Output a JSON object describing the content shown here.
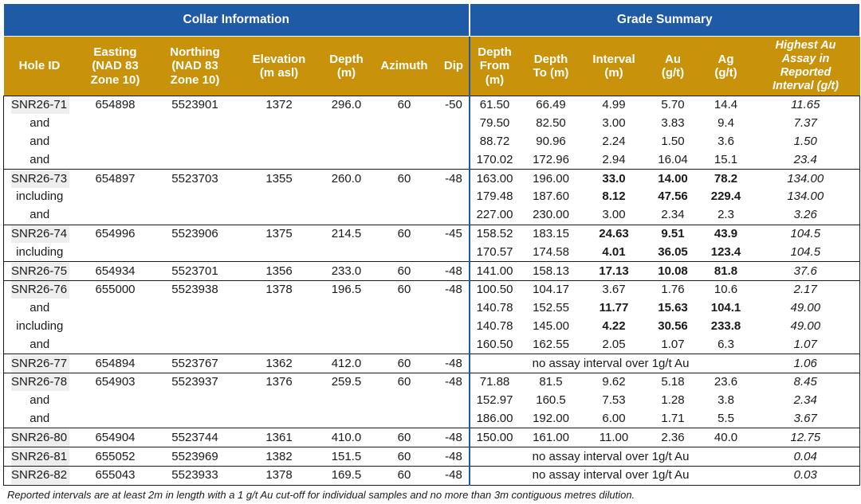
{
  "group_headers": {
    "collar": "Collar Information",
    "grade": "Grade Summary"
  },
  "columns": {
    "hole_id": [
      "Hole ID"
    ],
    "easting": [
      "Easting",
      "(NAD 83",
      "Zone 10)"
    ],
    "northing": [
      "Northing",
      "(NAD 83",
      "Zone 10)"
    ],
    "elevation": [
      "Elevation",
      "(m asl)"
    ],
    "depth": [
      "Depth",
      "(m)"
    ],
    "azimuth": [
      "Azimuth"
    ],
    "dip": [
      "Dip"
    ],
    "depth_from": [
      "Depth",
      "From",
      "(m)"
    ],
    "depth_to": [
      "Depth",
      "To (m)"
    ],
    "interval": [
      "Interval",
      "(m)"
    ],
    "au": [
      "Au",
      "(g/t)"
    ],
    "ag": [
      "Ag",
      "(g/t)"
    ],
    "highest_au": [
      "Highest Au",
      "Assay in",
      "Reported",
      "Interval  (g/t)"
    ]
  },
  "holes": [
    {
      "hole_id": "SNR26-71",
      "easting": "654898",
      "northing": "5523901",
      "elevation": "1372",
      "depth": "296.0",
      "azimuth": "60",
      "dip": "-50",
      "intervals": [
        {
          "label": "",
          "from": "61.50",
          "to": "66.49",
          "interval": "4.99",
          "au": "5.70",
          "ag": "14.4",
          "highest": "11.65",
          "bold": false
        },
        {
          "label": "and",
          "from": "79.50",
          "to": "82.50",
          "interval": "3.00",
          "au": "3.83",
          "ag": "9.4",
          "highest": "7.37",
          "bold": false
        },
        {
          "label": "and",
          "from": "88.72",
          "to": "90.96",
          "interval": "2.24",
          "au": "1.50",
          "ag": "3.6",
          "highest": "1.50",
          "bold": false
        },
        {
          "label": "and",
          "from": "170.02",
          "to": "172.96",
          "interval": "2.94",
          "au": "16.04",
          "ag": "15.1",
          "highest": "23.4",
          "bold": false
        }
      ]
    },
    {
      "hole_id": "SNR26-73",
      "easting": "654897",
      "northing": "5523703",
      "elevation": "1355",
      "depth": "260.0",
      "azimuth": "60",
      "dip": "-48",
      "intervals": [
        {
          "label": "",
          "from": "163.00",
          "to": "196.00",
          "interval": "33.0",
          "au": "14.00",
          "ag": "78.2",
          "highest": "134.00",
          "bold": true
        },
        {
          "label": "including",
          "from": "179.48",
          "to": "187.60",
          "interval": "8.12",
          "au": "47.56",
          "ag": "229.4",
          "highest": "134.00",
          "bold": true
        },
        {
          "label": "and",
          "from": "227.00",
          "to": "230.00",
          "interval": "3.00",
          "au": "2.34",
          "ag": "2.3",
          "highest": "3.26",
          "bold": false
        }
      ]
    },
    {
      "hole_id": "SNR26-74",
      "easting": "654996",
      "northing": "5523906",
      "elevation": "1375",
      "depth": "214.5",
      "azimuth": "60",
      "dip": "-45",
      "intervals": [
        {
          "label": "",
          "from": "158.52",
          "to": "183.15",
          "interval": "24.63",
          "au": "9.51",
          "ag": "43.9",
          "highest": "104.5",
          "bold": true
        },
        {
          "label": "including",
          "from": "170.57",
          "to": "174.58",
          "interval": "4.01",
          "au": "36.05",
          "ag": "123.4",
          "highest": "104.5",
          "bold": true
        }
      ]
    },
    {
      "hole_id": "SNR26-75",
      "easting": "654934",
      "northing": "5523701",
      "elevation": "1356",
      "depth": "233.0",
      "azimuth": "60",
      "dip": "-48",
      "intervals": [
        {
          "label": "",
          "from": "141.00",
          "to": "158.13",
          "interval": "17.13",
          "au": "10.08",
          "ag": "81.8",
          "highest": "37.6",
          "bold": true
        }
      ]
    },
    {
      "hole_id": "SNR26-76",
      "easting": "655000",
      "northing": "5523938",
      "elevation": "1378",
      "depth": "196.5",
      "azimuth": "60",
      "dip": "-48",
      "intervals": [
        {
          "label": "",
          "from": "100.50",
          "to": "104.17",
          "interval": "3.67",
          "au": "1.76",
          "ag": "10.6",
          "highest": "2.17",
          "bold": false
        },
        {
          "label": "and",
          "from": "140.78",
          "to": "152.55",
          "interval": "11.77",
          "au": "15.63",
          "ag": "104.1",
          "highest": "49.00",
          "bold": true
        },
        {
          "label": "including",
          "from": "140.78",
          "to": "145.00",
          "interval": "4.22",
          "au": "30.56",
          "ag": "233.8",
          "highest": "49.00",
          "bold": true
        },
        {
          "label": "and",
          "from": "160.50",
          "to": "162.55",
          "interval": "2.05",
          "au": "1.07",
          "ag": "6.3",
          "highest": "1.07",
          "bold": false
        }
      ]
    },
    {
      "hole_id": "SNR26-77",
      "easting": "654894",
      "northing": "5523767",
      "elevation": "1362",
      "depth": "412.0",
      "azimuth": "60",
      "dip": "-48",
      "no_assay": "no assay interval over 1g/t Au",
      "highest": "1.06"
    },
    {
      "hole_id": "SNR26-78",
      "easting": "654903",
      "northing": "5523937",
      "elevation": "1376",
      "depth": "259.5",
      "azimuth": "60",
      "dip": "-48",
      "intervals": [
        {
          "label": "",
          "from": "71.88",
          "to": "81.5",
          "interval": "9.62",
          "au": "5.18",
          "ag": "23.6",
          "highest": "8.45",
          "bold": false
        },
        {
          "label": "and",
          "from": "152.97",
          "to": "160.5",
          "interval": "7.53",
          "au": "1.28",
          "ag": "3.8",
          "highest": "2.34",
          "bold": false
        },
        {
          "label": "and",
          "from": "186.00",
          "to": "192.00",
          "interval": "6.00",
          "au": "1.71",
          "ag": "5.5",
          "highest": "3.67",
          "bold": false
        }
      ]
    },
    {
      "hole_id": "SNR26-80",
      "easting": "654904",
      "northing": "5523744",
      "elevation": "1361",
      "depth": "410.0",
      "azimuth": "60",
      "dip": "-48",
      "intervals": [
        {
          "label": "",
          "from": "150.00",
          "to": "161.00",
          "interval": "11.00",
          "au": "2.36",
          "ag": "40.0",
          "highest": "12.75",
          "bold": false
        }
      ]
    },
    {
      "hole_id": "SNR26-81",
      "easting": "655052",
      "northing": "5523969",
      "elevation": "1382",
      "depth": "151.5",
      "azimuth": "60",
      "dip": "-48",
      "no_assay": "no assay interval over 1g/t Au",
      "highest": "0.04"
    },
    {
      "hole_id": "SNR26-82",
      "easting": "655043",
      "northing": "5523933",
      "elevation": "1378",
      "depth": "169.5",
      "azimuth": "60",
      "dip": "-48",
      "no_assay": "no assay interval over 1g/t Au",
      "highest": "0.03"
    }
  ],
  "footnote": "Reported intervals are at least 2m in length with a 1 g/t Au cut-off for individual samples and no more than 3m contiguous metres dilution.",
  "colors": {
    "header_blue": "#1f5aa6",
    "header_gold": "#c8920a",
    "label_shade": "#eeeeee"
  }
}
